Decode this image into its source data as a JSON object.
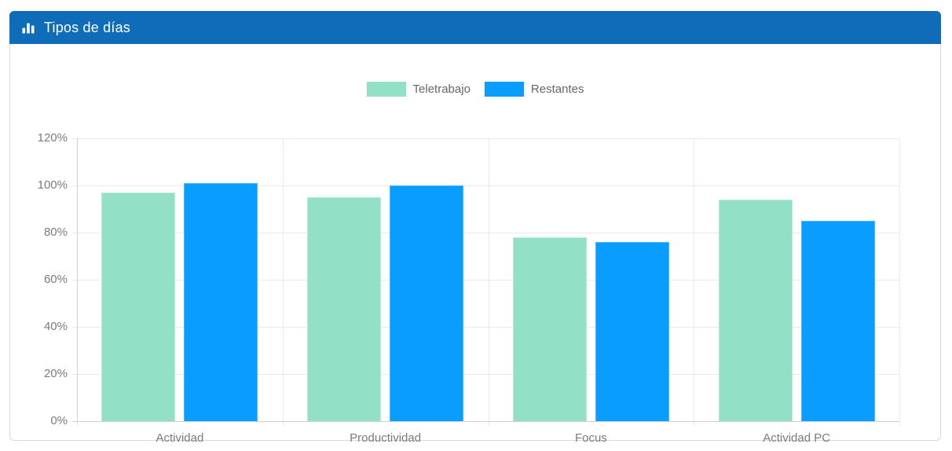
{
  "card": {
    "header": {
      "title": "Tipos de días",
      "icon": "bar-chart-icon",
      "bg_color": "#0f6cb8",
      "text_color": "#ffffff"
    }
  },
  "chart_data": {
    "type": "bar",
    "title": "Tipos de días",
    "categories": [
      "Actividad",
      "Productividad",
      "Focus",
      "Actividad PC"
    ],
    "series": [
      {
        "name": "Teletrabajo",
        "color": "#92e0c6",
        "border_color": "#b9ecdc",
        "values": [
          97,
          95,
          78,
          94
        ]
      },
      {
        "name": "Restantes",
        "color": "#089dff",
        "border_color": "#4db8ff",
        "values": [
          101,
          100,
          76,
          85
        ]
      }
    ],
    "xlabel": "",
    "ylabel": "",
    "y_axis": {
      "min": 0,
      "max": 120,
      "step": 20,
      "unit": "%",
      "tick_labels": [
        "0%",
        "20%",
        "40%",
        "60%",
        "80%",
        "100%",
        "120%"
      ]
    },
    "grid": true,
    "legend_position": "top",
    "grid_color": "#e9e9e9",
    "axis_color": "#cfcfcf",
    "tick_text_color": "#7b7b7b",
    "legend_text_color": "#666666"
  }
}
